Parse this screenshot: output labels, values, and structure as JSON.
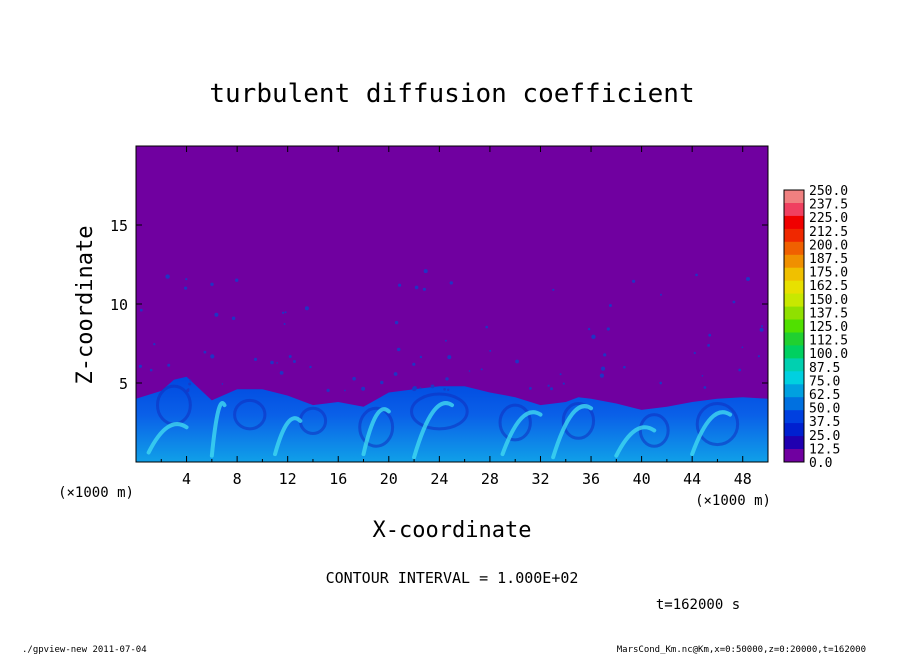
{
  "chart_data": {
    "type": "heatmap",
    "title": "turbulent diffusion coefficient",
    "xlabel": "X-coordinate",
    "ylabel": "Z-coordinate",
    "x_unit": "(×1000 m)",
    "y_unit": "(×1000 m)",
    "xlim": [
      0,
      50
    ],
    "ylim": [
      0,
      20
    ],
    "x_ticks": [
      4,
      8,
      12,
      16,
      20,
      24,
      28,
      32,
      36,
      40,
      44,
      48
    ],
    "y_ticks": [
      5,
      10,
      15
    ],
    "boundary_layer_top_km": [
      [
        0,
        4.0
      ],
      [
        2,
        4.5
      ],
      [
        3,
        5.2
      ],
      [
        4,
        5.4
      ],
      [
        6,
        3.9
      ],
      [
        8,
        4.6
      ],
      [
        10,
        4.6
      ],
      [
        12,
        4.2
      ],
      [
        14,
        3.6
      ],
      [
        16,
        3.8
      ],
      [
        18,
        3.5
      ],
      [
        20,
        4.4
      ],
      [
        22,
        4.6
      ],
      [
        24,
        4.8
      ],
      [
        26,
        4.8
      ],
      [
        28,
        4.4
      ],
      [
        30,
        4.1
      ],
      [
        32,
        3.6
      ],
      [
        34,
        3.8
      ],
      [
        35,
        4.1
      ],
      [
        36,
        4.0
      ],
      [
        38,
        3.7
      ],
      [
        40,
        3.3
      ],
      [
        42,
        3.5
      ],
      [
        44,
        3.8
      ],
      [
        46,
        4.0
      ],
      [
        48,
        4.1
      ],
      [
        50,
        4.0
      ]
    ],
    "colorbar": {
      "levels": [
        "250.0",
        "237.5",
        "225.0",
        "212.5",
        "200.0",
        "187.5",
        "175.0",
        "162.5",
        "150.0",
        "137.5",
        "125.0",
        "112.5",
        "100.0",
        "87.5",
        "75.0",
        "62.5",
        "50.0",
        "37.5",
        "25.0",
        "12.5",
        "0.0"
      ],
      "colors": [
        "#f08080",
        "#f04060",
        "#f00000",
        "#f02800",
        "#f06000",
        "#f09000",
        "#f0c000",
        "#e8e000",
        "#c8e800",
        "#90e000",
        "#50e000",
        "#20d030",
        "#00d060",
        "#00d0b0",
        "#00d0e0",
        "#00a0e0",
        "#0070e0",
        "#0040e0",
        "#0020d0",
        "#2000b0",
        "#7000a0"
      ]
    },
    "background_color": "#7000a0"
  },
  "annotations": {
    "x_unit_left": "(×1000 m)",
    "x_unit_right": "(×1000 m)",
    "contour_interval": "CONTOUR INTERVAL = 1.000E+02",
    "time": "t=162000 s",
    "footer_left": "./gpview-new  2011-07-04",
    "footer_right": "MarsCond_Km.nc@Km,x=0:50000,z=0:20000,t=162000"
  }
}
